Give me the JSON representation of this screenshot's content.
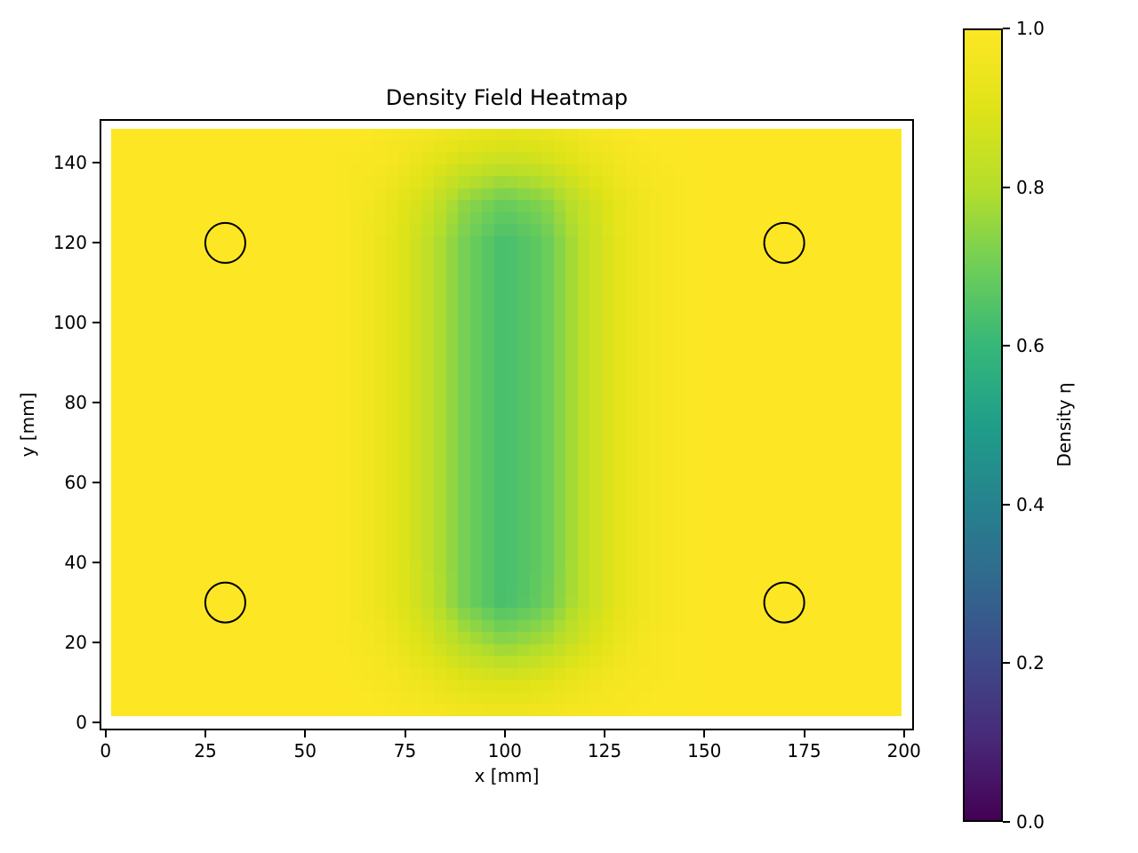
{
  "title": "Density Field Heatmap",
  "colors": {
    "background": "#ffffff",
    "text": "#000000",
    "spine": "#000000",
    "marker_outline": "#000000"
  },
  "axes": {
    "xlabel": "x [mm]",
    "ylabel": "y [mm]",
    "x_tick_labels": [
      "0",
      "25",
      "50",
      "75",
      "100",
      "125",
      "150",
      "175",
      "200"
    ],
    "x_tick_values": [
      0,
      25,
      50,
      75,
      100,
      125,
      150,
      175,
      200
    ],
    "y_tick_labels": [
      "0",
      "20",
      "40",
      "60",
      "80",
      "100",
      "120",
      "140"
    ],
    "y_tick_values": [
      0,
      20,
      40,
      60,
      80,
      100,
      120,
      140
    ]
  },
  "colorbar": {
    "label": "Density η",
    "tick_labels": [
      "0.0",
      "0.2",
      "0.4",
      "0.6",
      "0.8",
      "1.0"
    ],
    "tick_values": [
      0,
      0.2,
      0.4,
      0.6,
      0.8,
      1.0
    ],
    "vmin": 0.0,
    "vmax": 1.0,
    "colormap": "viridis"
  },
  "chart_data": {
    "type": "heatmap",
    "title": "Density Field Heatmap",
    "xlabel": "x [mm]",
    "ylabel": "y [mm]",
    "colorbar_label": "Density η",
    "colormap": "viridis",
    "vmin": 0.0,
    "vmax": 1.0,
    "xlim": [
      -1.5,
      202.5
    ],
    "ylim": [
      -2,
      151
    ],
    "extent_x": [
      1.5,
      199.5
    ],
    "extent_y": [
      1.5,
      148.5
    ],
    "cell_size_mm": 3,
    "x": [
      0,
      10,
      20,
      30,
      40,
      50,
      60,
      70,
      80,
      90,
      100,
      110,
      120,
      130,
      140,
      150,
      160,
      170,
      180,
      190,
      200
    ],
    "y": [
      0,
      10,
      20,
      30,
      40,
      50,
      60,
      70,
      80,
      90,
      100,
      110,
      120,
      130,
      140,
      148
    ],
    "values": [
      [
        1.0,
        1.0,
        1.0,
        1.0,
        1.0,
        1.0,
        1.0,
        1.0,
        0.99,
        0.98,
        0.97,
        0.98,
        0.99,
        0.99,
        1.0,
        1.0,
        1.0,
        1.0,
        1.0,
        1.0,
        1.0
      ],
      [
        1.0,
        1.0,
        1.0,
        1.0,
        1.0,
        1.0,
        1.0,
        0.98,
        0.95,
        0.91,
        0.89,
        0.91,
        0.95,
        0.98,
        0.99,
        1.0,
        1.0,
        1.0,
        1.0,
        1.0,
        1.0
      ],
      [
        1.0,
        1.0,
        1.0,
        1.0,
        1.0,
        1.0,
        0.99,
        0.96,
        0.89,
        0.8,
        0.74,
        0.78,
        0.87,
        0.95,
        0.99,
        1.0,
        1.0,
        1.0,
        1.0,
        1.0,
        1.0
      ],
      [
        1.0,
        1.0,
        1.0,
        1.0,
        1.0,
        1.0,
        0.99,
        0.94,
        0.85,
        0.71,
        0.63,
        0.69,
        0.82,
        0.93,
        0.98,
        1.0,
        1.0,
        1.0,
        1.0,
        1.0,
        1.0
      ],
      [
        1.0,
        1.0,
        1.0,
        1.0,
        1.0,
        1.0,
        0.99,
        0.94,
        0.84,
        0.71,
        0.63,
        0.68,
        0.82,
        0.93,
        0.98,
        1.0,
        1.0,
        1.0,
        1.0,
        1.0,
        1.0
      ],
      [
        1.0,
        1.0,
        1.0,
        1.0,
        1.0,
        1.0,
        0.99,
        0.94,
        0.84,
        0.71,
        0.63,
        0.68,
        0.82,
        0.93,
        0.98,
        1.0,
        1.0,
        1.0,
        1.0,
        1.0,
        1.0
      ],
      [
        1.0,
        1.0,
        1.0,
        1.0,
        1.0,
        1.0,
        0.99,
        0.94,
        0.84,
        0.71,
        0.63,
        0.68,
        0.82,
        0.93,
        0.98,
        1.0,
        1.0,
        1.0,
        1.0,
        1.0,
        1.0
      ],
      [
        1.0,
        1.0,
        1.0,
        1.0,
        1.0,
        1.0,
        0.99,
        0.94,
        0.84,
        0.71,
        0.63,
        0.68,
        0.82,
        0.93,
        0.98,
        1.0,
        1.0,
        1.0,
        1.0,
        1.0,
        1.0
      ],
      [
        1.0,
        1.0,
        1.0,
        1.0,
        1.0,
        1.0,
        0.99,
        0.94,
        0.84,
        0.71,
        0.63,
        0.68,
        0.82,
        0.93,
        0.98,
        1.0,
        1.0,
        1.0,
        1.0,
        1.0,
        1.0
      ],
      [
        1.0,
        1.0,
        1.0,
        1.0,
        1.0,
        1.0,
        0.99,
        0.94,
        0.84,
        0.71,
        0.63,
        0.68,
        0.82,
        0.93,
        0.98,
        1.0,
        1.0,
        1.0,
        1.0,
        1.0,
        1.0
      ],
      [
        1.0,
        1.0,
        1.0,
        1.0,
        1.0,
        1.0,
        0.99,
        0.94,
        0.84,
        0.71,
        0.63,
        0.68,
        0.82,
        0.93,
        0.98,
        1.0,
        1.0,
        1.0,
        1.0,
        1.0,
        1.0
      ],
      [
        1.0,
        1.0,
        1.0,
        1.0,
        1.0,
        1.0,
        0.99,
        0.94,
        0.84,
        0.71,
        0.63,
        0.68,
        0.82,
        0.93,
        0.98,
        1.0,
        1.0,
        1.0,
        1.0,
        1.0,
        1.0
      ],
      [
        1.0,
        1.0,
        1.0,
        1.0,
        1.0,
        1.0,
        0.99,
        0.94,
        0.84,
        0.71,
        0.63,
        0.68,
        0.82,
        0.93,
        0.98,
        1.0,
        1.0,
        1.0,
        1.0,
        1.0,
        1.0
      ],
      [
        1.0,
        1.0,
        1.0,
        1.0,
        1.0,
        1.0,
        0.99,
        0.95,
        0.87,
        0.75,
        0.69,
        0.73,
        0.84,
        0.94,
        0.98,
        1.0,
        1.0,
        1.0,
        1.0,
        1.0,
        1.0
      ],
      [
        1.0,
        1.0,
        1.0,
        1.0,
        1.0,
        1.0,
        0.99,
        0.98,
        0.93,
        0.87,
        0.84,
        0.86,
        0.92,
        0.97,
        0.99,
        1.0,
        1.0,
        1.0,
        1.0,
        1.0,
        1.0
      ],
      [
        1.0,
        1.0,
        1.0,
        1.0,
        1.0,
        1.0,
        1.0,
        0.99,
        0.97,
        0.95,
        0.93,
        0.94,
        0.97,
        0.99,
        1.0,
        1.0,
        1.0,
        1.0,
        1.0,
        1.0,
        1.0
      ]
    ],
    "markers": {
      "shape": "circle",
      "fill": "none",
      "outline_color": "#000000",
      "radius_mm": 5,
      "centers_mm": [
        [
          30,
          30
        ],
        [
          170,
          30
        ],
        [
          30,
          120
        ],
        [
          170,
          120
        ]
      ]
    },
    "viridis_stops": [
      [
        0.0,
        "#440154"
      ],
      [
        0.1,
        "#482878"
      ],
      [
        0.2,
        "#3e4989"
      ],
      [
        0.3,
        "#31688e"
      ],
      [
        0.4,
        "#26828e"
      ],
      [
        0.5,
        "#1f9e89"
      ],
      [
        0.6,
        "#35b779"
      ],
      [
        0.7,
        "#6ece58"
      ],
      [
        0.8,
        "#b5de2b"
      ],
      [
        0.9,
        "#dfe318"
      ],
      [
        1.0,
        "#fde725"
      ]
    ]
  }
}
